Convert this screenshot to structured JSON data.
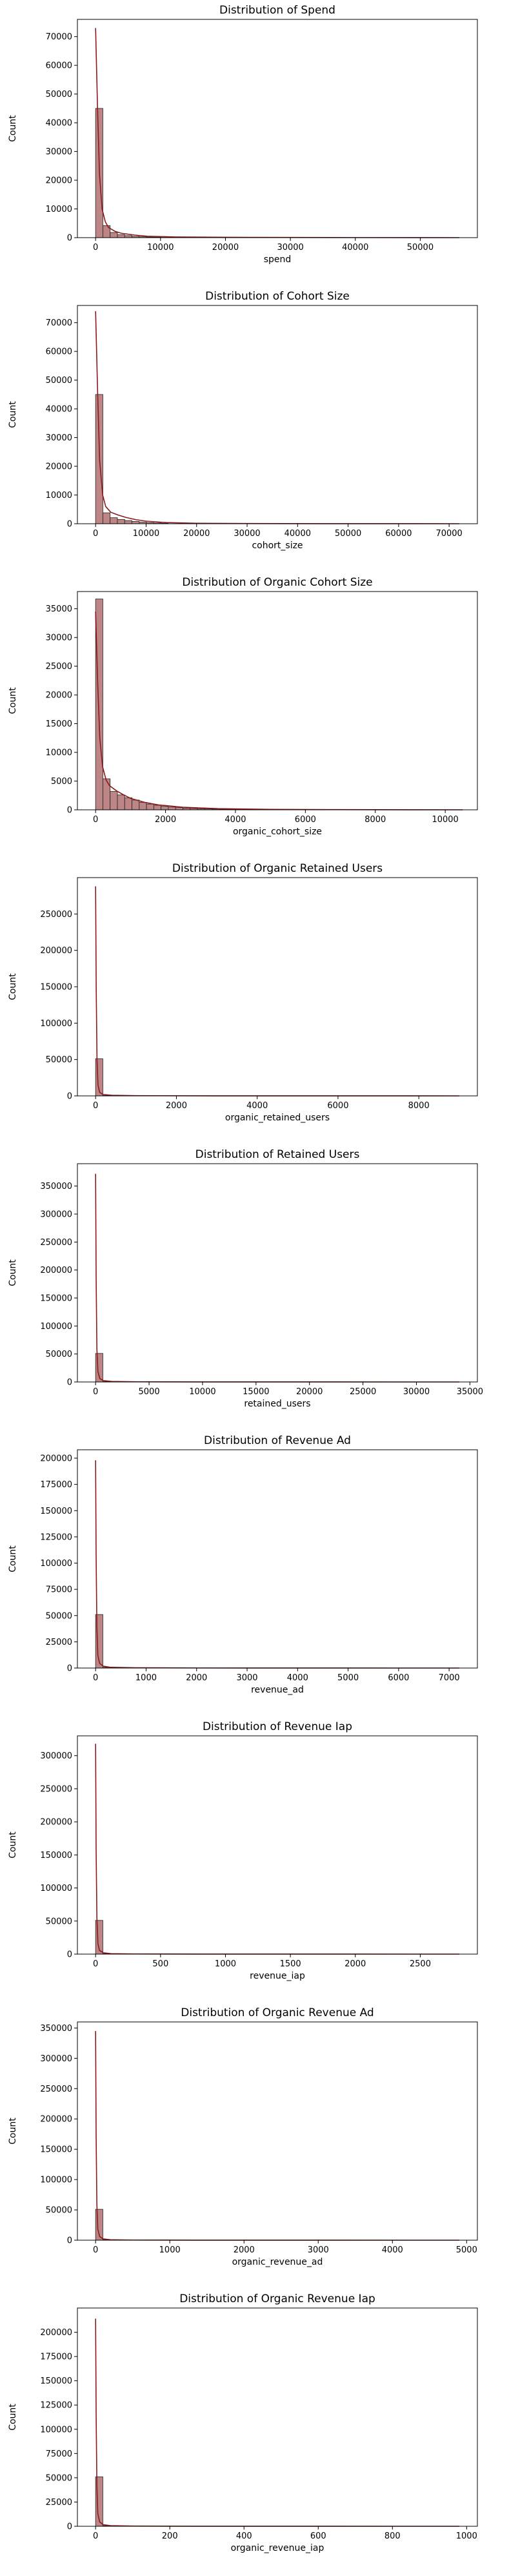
{
  "chart_data": [
    {
      "type": "bar",
      "title": "Distribution of Spend",
      "xlabel": "spend",
      "ylabel": "Count",
      "xlim": [
        -2800,
        58800
      ],
      "ylim": [
        0,
        76000
      ],
      "xticks": [
        0,
        10000,
        20000,
        30000,
        40000,
        50000
      ],
      "yticks": [
        0,
        10000,
        20000,
        30000,
        40000,
        50000,
        60000,
        70000
      ],
      "x": [
        0,
        1120,
        2240,
        3360,
        4480,
        5600,
        6720,
        7840,
        8960,
        10080
      ],
      "values": [
        45000,
        4200,
        1800,
        1000,
        700,
        450,
        300,
        200,
        150,
        100
      ],
      "bin_width": 1120,
      "kde": {
        "x": [
          0,
          300,
          600,
          1000,
          1500,
          2000,
          3000,
          4000,
          6000,
          8000,
          12000,
          20000,
          30000,
          40000,
          50000,
          56000
        ],
        "y": [
          73000,
          45000,
          22000,
          10000,
          5500,
          3500,
          2200,
          1500,
          900,
          500,
          250,
          120,
          60,
          30,
          10,
          0
        ]
      }
    },
    {
      "type": "bar",
      "title": "Distribution of Cohort Size",
      "xlabel": "cohort_size",
      "ylabel": "Count",
      "xlim": [
        -3600,
        75600
      ],
      "ylim": [
        0,
        76000
      ],
      "xticks": [
        0,
        10000,
        20000,
        30000,
        40000,
        50000,
        60000,
        70000
      ],
      "yticks": [
        0,
        10000,
        20000,
        30000,
        40000,
        50000,
        60000,
        70000
      ],
      "x": [
        0,
        1440,
        2880,
        4320,
        5760,
        7200,
        8640,
        10080,
        11520,
        12960
      ],
      "values": [
        45000,
        3800,
        2100,
        1500,
        1100,
        800,
        550,
        380,
        250,
        150
      ],
      "bin_width": 1440,
      "kde": {
        "x": [
          0,
          400,
          800,
          1400,
          2000,
          3000,
          4500,
          6000,
          8000,
          10000,
          14000,
          20000,
          30000,
          45000,
          60000,
          72000
        ],
        "y": [
          74000,
          46000,
          22000,
          10000,
          6000,
          4000,
          3000,
          2200,
          1400,
          900,
          400,
          150,
          60,
          20,
          5,
          0
        ]
      }
    },
    {
      "type": "bar",
      "title": "Distribution of Organic Cohort Size",
      "xlabel": "organic_cohort_size",
      "ylabel": "Count",
      "xlim": [
        -520,
        10920
      ],
      "ylim": [
        0,
        38000
      ],
      "xticks": [
        0,
        2000,
        4000,
        6000,
        8000,
        10000
      ],
      "yticks": [
        0,
        5000,
        10000,
        15000,
        20000,
        25000,
        30000,
        35000
      ],
      "x": [
        0,
        208,
        416,
        624,
        832,
        1040,
        1248,
        1456,
        1664,
        1872,
        2080,
        2288,
        2496,
        2704,
        2912,
        3120,
        3328,
        3536,
        3744,
        3952
      ],
      "values": [
        36700,
        5400,
        3200,
        2600,
        2100,
        1700,
        1300,
        1000,
        800,
        600,
        480,
        380,
        300,
        240,
        190,
        150,
        120,
        95,
        75,
        60
      ],
      "bin_width": 208,
      "kde": {
        "x": [
          0,
          60,
          120,
          200,
          300,
          400,
          600,
          800,
          1000,
          1400,
          1800,
          2500,
          3500,
          5000,
          7000,
          9000,
          10500
        ],
        "y": [
          34500,
          22000,
          12500,
          7500,
          5200,
          4200,
          3300,
          2600,
          2000,
          1300,
          850,
          450,
          200,
          80,
          30,
          10,
          0
        ]
      }
    },
    {
      "type": "bar",
      "title": "Distribution of Organic Retained Users",
      "xlabel": "organic_retained_users",
      "ylabel": "Count",
      "xlim": [
        -450,
        9450
      ],
      "ylim": [
        0,
        300000
      ],
      "xticks": [
        0,
        2000,
        4000,
        6000,
        8000
      ],
      "yticks": [
        0,
        50000,
        100000,
        150000,
        200000,
        250000
      ],
      "x": [
        0,
        180,
        360,
        540
      ],
      "values": [
        51000,
        600,
        200,
        80
      ],
      "bin_width": 180,
      "kde": {
        "x": [
          0,
          15,
          35,
          60,
          100,
          180,
          400,
          1000,
          3000,
          6000,
          9000
        ],
        "y": [
          288000,
          150000,
          50000,
          15000,
          5000,
          2000,
          800,
          300,
          100,
          40,
          0
        ]
      }
    },
    {
      "type": "bar",
      "title": "Distribution of Retained Users",
      "xlabel": "retained_users",
      "ylabel": "Count",
      "xlim": [
        -1700,
        35700
      ],
      "ylim": [
        0,
        390000
      ],
      "xticks": [
        0,
        5000,
        10000,
        15000,
        20000,
        25000,
        30000,
        35000
      ],
      "yticks": [
        0,
        50000,
        100000,
        150000,
        200000,
        250000,
        300000,
        350000
      ],
      "x": [
        0,
        680,
        1360,
        2040
      ],
      "values": [
        51000,
        700,
        250,
        90
      ],
      "bin_width": 680,
      "kde": {
        "x": [
          0,
          50,
          120,
          220,
          400,
          700,
          1500,
          4000,
          10000,
          20000,
          34000
        ],
        "y": [
          372000,
          190000,
          60000,
          18000,
          6000,
          2500,
          900,
          300,
          100,
          30,
          0
        ]
      }
    },
    {
      "type": "bar",
      "title": "Distribution of Revenue Ad",
      "xlabel": "revenue_ad",
      "ylabel": "Count",
      "xlim": [
        -360,
        7560
      ],
      "ylim": [
        0,
        208000
      ],
      "xticks": [
        0,
        1000,
        2000,
        3000,
        4000,
        5000,
        6000,
        7000
      ],
      "yticks": [
        0,
        25000,
        50000,
        75000,
        100000,
        125000,
        150000,
        175000,
        200000
      ],
      "x": [
        0,
        144,
        288,
        432
      ],
      "values": [
        51000,
        700,
        250,
        90
      ],
      "bin_width": 144,
      "kde": {
        "x": [
          0,
          10,
          25,
          45,
          80,
          150,
          300,
          800,
          2000,
          4500,
          7200
        ],
        "y": [
          198000,
          110000,
          40000,
          12000,
          4500,
          1800,
          700,
          250,
          80,
          20,
          0
        ]
      }
    },
    {
      "type": "bar",
      "title": "Distribution of Revenue Iap",
      "xlabel": "revenue_iap",
      "ylabel": "Count",
      "xlim": [
        -140,
        2940
      ],
      "ylim": [
        0,
        330000
      ],
      "xticks": [
        0,
        500,
        1000,
        1500,
        2000,
        2500
      ],
      "yticks": [
        0,
        50000,
        100000,
        150000,
        200000,
        250000,
        300000
      ],
      "x": [
        0,
        56,
        112,
        168
      ],
      "values": [
        51000,
        600,
        200,
        80
      ],
      "bin_width": 56,
      "kde": {
        "x": [
          0,
          4,
          10,
          18,
          30,
          60,
          120,
          300,
          800,
          1800,
          2800
        ],
        "y": [
          318000,
          160000,
          55000,
          16000,
          5500,
          2000,
          700,
          250,
          80,
          20,
          0
        ]
      }
    },
    {
      "type": "bar",
      "title": "Distribution of Organic Revenue Ad",
      "xlabel": "organic_revenue_ad",
      "ylabel": "Count",
      "xlim": [
        -245,
        5145
      ],
      "ylim": [
        0,
        360000
      ],
      "xticks": [
        0,
        1000,
        2000,
        3000,
        4000,
        5000
      ],
      "yticks": [
        0,
        50000,
        100000,
        150000,
        200000,
        250000,
        300000,
        350000
      ],
      "x": [
        0,
        98,
        196,
        294
      ],
      "values": [
        51000,
        600,
        200,
        80
      ],
      "bin_width": 98,
      "kde": {
        "x": [
          0,
          7,
          17,
          30,
          55,
          100,
          200,
          500,
          1300,
          3000,
          4900
        ],
        "y": [
          345000,
          175000,
          60000,
          18000,
          6000,
          2200,
          800,
          280,
          90,
          20,
          0
        ]
      }
    },
    {
      "type": "bar",
      "title": "Distribution of Organic Revenue Iap",
      "xlabel": "organic_revenue_iap",
      "ylabel": "Count",
      "xlim": [
        -49,
        1029
      ],
      "ylim": [
        0,
        225000
      ],
      "xticks": [
        0,
        200,
        400,
        600,
        800,
        1000
      ],
      "yticks": [
        0,
        25000,
        50000,
        75000,
        100000,
        125000,
        150000,
        175000,
        200000
      ],
      "x": [
        0,
        19.6,
        39.2,
        58.8
      ],
      "values": [
        51000,
        600,
        200,
        80
      ],
      "bin_width": 19.6,
      "kde": {
        "x": [
          0,
          1.5,
          3.5,
          6,
          11,
          20,
          40,
          100,
          260,
          600,
          980
        ],
        "y": [
          214000,
          115000,
          42000,
          13000,
          4500,
          1700,
          650,
          230,
          70,
          15,
          0
        ]
      }
    }
  ]
}
